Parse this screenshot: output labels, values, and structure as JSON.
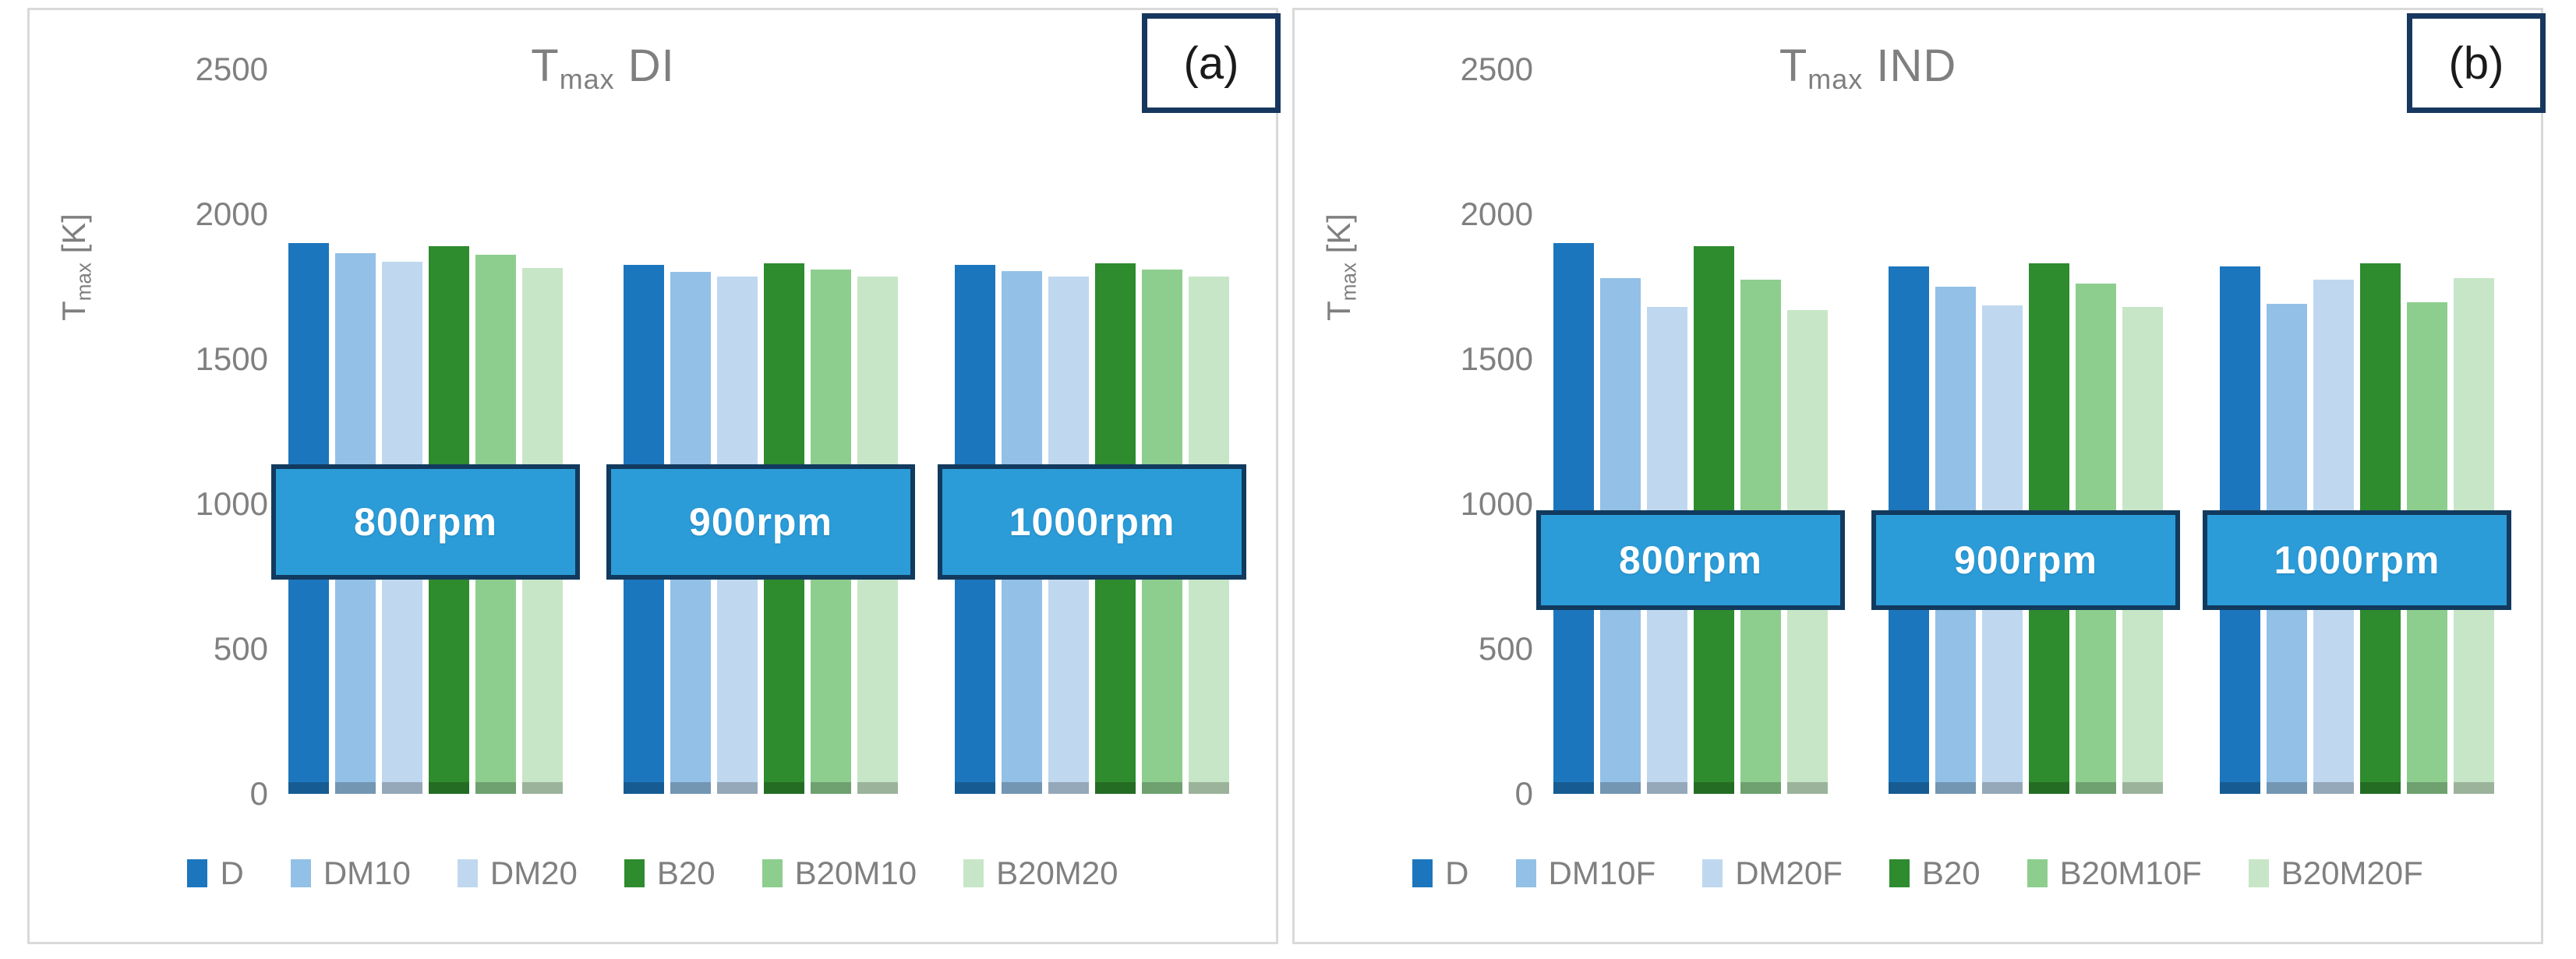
{
  "styles": {
    "panel_border": "#D9D9D9",
    "text_gray": "#7F7F7F",
    "tick_gray": "#808080",
    "rpm_box_fill": "#2B9CD8",
    "rpm_box_border": "#123A5E",
    "rpm_text_color": "#FFFFFF",
    "corner_box_border": "#17375E"
  },
  "chart_data": [
    {
      "type": "bar",
      "panel_label": "(a)",
      "title": "Tmax DI",
      "title_parts": {
        "main": "T",
        "sub": "max",
        "rest": " DI"
      },
      "ylabel": "Tmax [K]",
      "ylabel_parts": {
        "main": "T",
        "sub": "max",
        "rest": " [K]"
      },
      "ylim": [
        0,
        2500
      ],
      "yticks": [
        0,
        500,
        1000,
        1500,
        2000,
        2500
      ],
      "grid": false,
      "legend_position": "bottom",
      "categories": [
        "800rpm",
        "900rpm",
        "1000rpm"
      ],
      "category_label_style": "blue-box-overlay",
      "series": [
        {
          "name": "D",
          "color": "#1C76BD",
          "values": [
            1900,
            1825,
            1825
          ]
        },
        {
          "name": "DM10",
          "color": "#93C0E6",
          "values": [
            1865,
            1800,
            1805
          ]
        },
        {
          "name": "DM20",
          "color": "#BFD8EF",
          "values": [
            1835,
            1785,
            1785
          ]
        },
        {
          "name": "B20",
          "color": "#2E8B2E",
          "values": [
            1890,
            1830,
            1830
          ]
        },
        {
          "name": "B20M10",
          "color": "#8DCE8E",
          "values": [
            1860,
            1810,
            1810
          ]
        },
        {
          "name": "B20M20",
          "color": "#C7E6C7",
          "values": [
            1815,
            1785,
            1785
          ]
        }
      ]
    },
    {
      "type": "bar",
      "panel_label": "(b)",
      "title": "Tmax IND",
      "title_parts": {
        "main": "T",
        "sub": "max",
        "rest": " IND"
      },
      "ylabel": "Tmax [K]",
      "ylabel_parts": {
        "main": "T",
        "sub": "max",
        "rest": " [K]"
      },
      "ylim": [
        0,
        2500
      ],
      "yticks": [
        0,
        500,
        1000,
        1500,
        2000,
        2500
      ],
      "grid": false,
      "legend_position": "bottom",
      "categories": [
        "800rpm",
        "900rpm",
        "1000rpm"
      ],
      "category_label_style": "blue-box-overlay",
      "series": [
        {
          "name": "D",
          "color": "#1C76BD",
          "values": [
            1900,
            1820,
            1820
          ]
        },
        {
          "name": "DM10F",
          "color": "#93C0E6",
          "values": [
            1780,
            1750,
            1690
          ]
        },
        {
          "name": "DM20F",
          "color": "#BFD8EF",
          "values": [
            1680,
            1685,
            1775
          ]
        },
        {
          "name": "B20",
          "color": "#2E8B2E",
          "values": [
            1890,
            1830,
            1830
          ]
        },
        {
          "name": "B20M10F",
          "color": "#8DCE8E",
          "values": [
            1775,
            1760,
            1695
          ]
        },
        {
          "name": "B20M20F",
          "color": "#C7E6C7",
          "values": [
            1670,
            1680,
            1780
          ]
        }
      ]
    }
  ]
}
